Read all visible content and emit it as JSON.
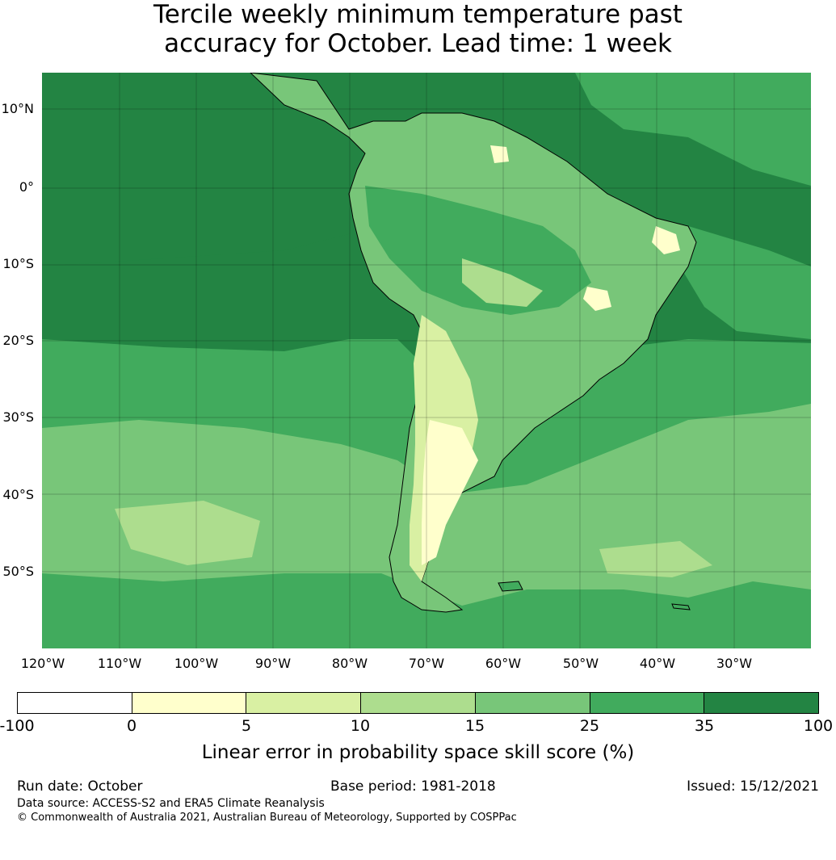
{
  "title": {
    "line1": "Tercile weekly minimum temperature past",
    "line2": "accuracy for October. Lead time: 1 week"
  },
  "map": {
    "region": "South America and surrounding oceans",
    "ocean_base_color": "#238b45",
    "lat_labels": [
      "10°N",
      "0°",
      "10°S",
      "20°S",
      "30°S",
      "40°S",
      "50°S"
    ],
    "lon_labels": [
      "120°W",
      "110°W",
      "100°W",
      "90°W",
      "80°W",
      "70°W",
      "60°W",
      "50°W",
      "40°W",
      "30°W"
    ],
    "gridlines": true
  },
  "colorbar": {
    "label": "Linear error in probability space skill score (%)",
    "ticks": [
      "-100",
      "0",
      "5",
      "10",
      "15",
      "25",
      "35",
      "100"
    ],
    "colors": [
      "#ffffff",
      "#ffffcc",
      "#d9f0a3",
      "#addd8e",
      "#78c679",
      "#41ab5d",
      "#238443"
    ]
  },
  "footer": {
    "run_date": "Run date: October",
    "base_period": "Base period: 1981-2018",
    "issued": "Issued: 15/12/2021",
    "data_source": "Data source: ACCESS-S2 and ERA5 Climate Reanalysis",
    "copyright": "© Commonwealth of Australia 2021, Australian Bureau of Meteorology, Supported by COSPPac"
  }
}
